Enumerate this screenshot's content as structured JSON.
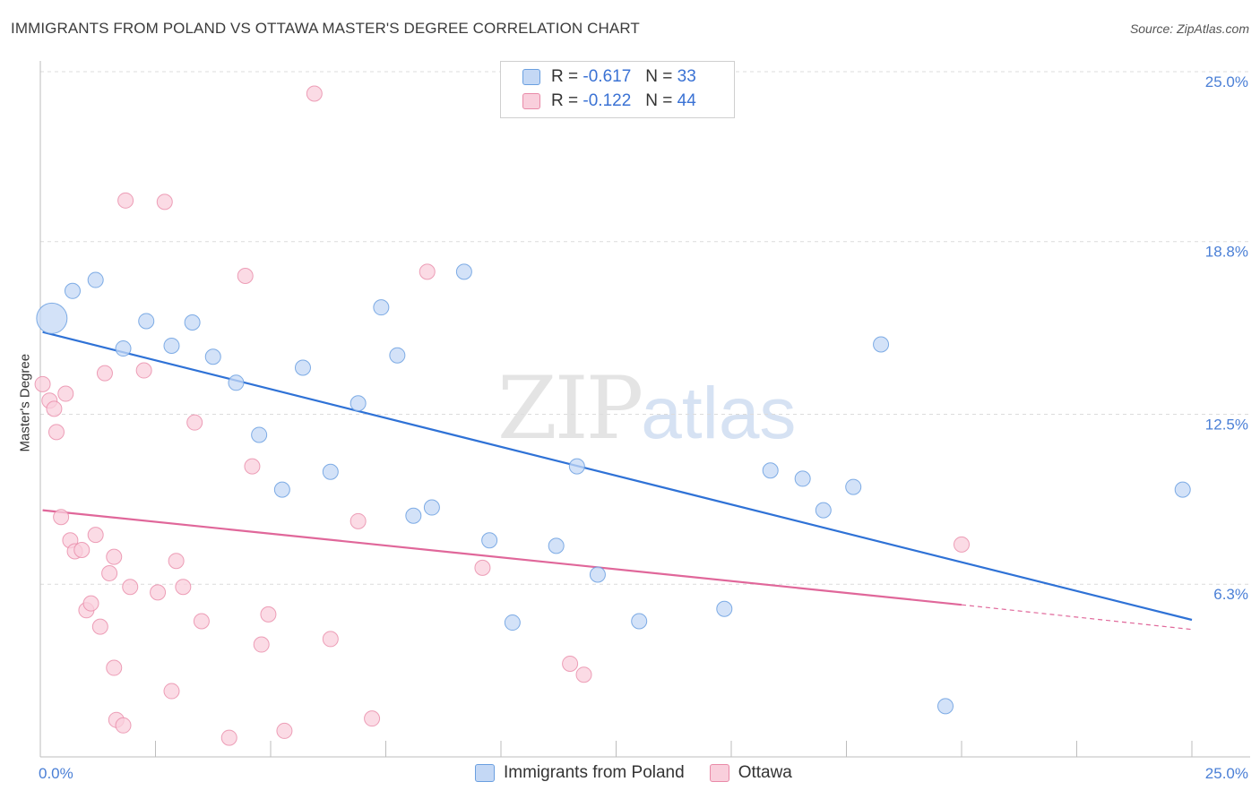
{
  "header": {
    "title": "IMMIGRANTS FROM POLAND VS OTTAWA MASTER'S DEGREE CORRELATION CHART",
    "source": "Source: ZipAtlas.com"
  },
  "watermark": {
    "zip": "ZIP",
    "atlas": "atlas"
  },
  "legend": {
    "rows": [
      {
        "r_label": "R =",
        "r_value": "-0.617",
        "n_label": "N =",
        "n_value": "33"
      },
      {
        "r_label": "R =",
        "r_value": "-0.122",
        "n_label": "N =",
        "n_value": "44"
      }
    ]
  },
  "bottom_legend": {
    "series1": "Immigrants from Poland",
    "series2": "Ottawa"
  },
  "chart_data": {
    "type": "scatter",
    "title": "IMMIGRANTS FROM POLAND VS OTTAWA MASTER'S DEGREE CORRELATION CHART",
    "xlabel": "",
    "ylabel": "Master's Degree",
    "xlim": [
      0,
      25
    ],
    "ylim": [
      0,
      25
    ],
    "x_tick_labels": [
      "0.0%",
      "25.0%"
    ],
    "y_ticks": [
      6.3,
      12.5,
      18.8,
      25.0
    ],
    "y_tick_labels": [
      "6.3%",
      "12.5%",
      "18.8%",
      "25.0%"
    ],
    "colors": {
      "series1": "#6a9fe0",
      "series1_fill": "#c4d8f5",
      "series2": "#e98aa8",
      "series2_fill": "#f9cfdc",
      "trend1": "#2f72d6",
      "trend2": "#e0679a"
    },
    "series": [
      {
        "name": "Immigrants from Poland",
        "r": -0.617,
        "n": 33,
        "trend": {
          "x0": 0.05,
          "y0": 15.5,
          "x1": 25.0,
          "y1": 5.0
        },
        "points": [
          {
            "x": 0.25,
            "y": 16.0,
            "big": true
          },
          {
            "x": 0.7,
            "y": 17.0
          },
          {
            "x": 1.2,
            "y": 17.4
          },
          {
            "x": 1.8,
            "y": 14.9
          },
          {
            "x": 2.3,
            "y": 15.9
          },
          {
            "x": 2.85,
            "y": 15.0
          },
          {
            "x": 3.3,
            "y": 15.85
          },
          {
            "x": 3.75,
            "y": 14.6
          },
          {
            "x": 4.25,
            "y": 13.65
          },
          {
            "x": 4.75,
            "y": 11.75
          },
          {
            "x": 5.25,
            "y": 9.75
          },
          {
            "x": 5.7,
            "y": 14.2
          },
          {
            "x": 6.3,
            "y": 10.4
          },
          {
            "x": 6.9,
            "y": 12.9
          },
          {
            "x": 7.4,
            "y": 16.4
          },
          {
            "x": 7.75,
            "y": 14.65
          },
          {
            "x": 8.1,
            "y": 8.8
          },
          {
            "x": 8.5,
            "y": 9.1
          },
          {
            "x": 9.2,
            "y": 17.7
          },
          {
            "x": 9.75,
            "y": 7.9
          },
          {
            "x": 10.25,
            "y": 4.9
          },
          {
            "x": 11.2,
            "y": 7.7
          },
          {
            "x": 11.65,
            "y": 10.6
          },
          {
            "x": 12.1,
            "y": 6.65
          },
          {
            "x": 13.0,
            "y": 4.95
          },
          {
            "x": 14.85,
            "y": 5.4
          },
          {
            "x": 15.85,
            "y": 10.45
          },
          {
            "x": 16.55,
            "y": 10.15
          },
          {
            "x": 17.0,
            "y": 9.0
          },
          {
            "x": 17.65,
            "y": 9.85
          },
          {
            "x": 18.25,
            "y": 15.05
          },
          {
            "x": 19.65,
            "y": 1.85
          },
          {
            "x": 24.8,
            "y": 9.75
          }
        ]
      },
      {
        "name": "Ottawa",
        "r": -0.122,
        "n": 44,
        "trend": {
          "x0": 0.05,
          "y0": 9.0,
          "x1": 20.0,
          "y1": 5.55,
          "dash_to_x": 25.0,
          "dash_to_y": 4.65
        },
        "points": [
          {
            "x": 0.05,
            "y": 13.6
          },
          {
            "x": 0.2,
            "y": 13.0
          },
          {
            "x": 0.3,
            "y": 12.7
          },
          {
            "x": 0.35,
            "y": 11.85
          },
          {
            "x": 0.45,
            "y": 8.75
          },
          {
            "x": 0.55,
            "y": 13.25
          },
          {
            "x": 0.65,
            "y": 7.9
          },
          {
            "x": 0.75,
            "y": 7.5
          },
          {
            "x": 0.9,
            "y": 7.55
          },
          {
            "x": 1.0,
            "y": 5.35
          },
          {
            "x": 1.1,
            "y": 5.6
          },
          {
            "x": 1.2,
            "y": 8.1
          },
          {
            "x": 1.3,
            "y": 4.75
          },
          {
            "x": 1.4,
            "y": 14.0
          },
          {
            "x": 1.5,
            "y": 6.7
          },
          {
            "x": 1.6,
            "y": 7.3
          },
          {
            "x": 1.6,
            "y": 3.25
          },
          {
            "x": 1.65,
            "y": 1.35
          },
          {
            "x": 1.8,
            "y": 1.15
          },
          {
            "x": 1.85,
            "y": 20.3
          },
          {
            "x": 1.95,
            "y": 6.2
          },
          {
            "x": 2.25,
            "y": 14.1
          },
          {
            "x": 2.55,
            "y": 6.0
          },
          {
            "x": 2.7,
            "y": 20.25
          },
          {
            "x": 2.85,
            "y": 2.4
          },
          {
            "x": 2.95,
            "y": 7.15
          },
          {
            "x": 3.1,
            "y": 6.2
          },
          {
            "x": 3.35,
            "y": 12.2
          },
          {
            "x": 3.5,
            "y": 4.95
          },
          {
            "x": 4.1,
            "y": 0.7
          },
          {
            "x": 4.45,
            "y": 17.55
          },
          {
            "x": 4.6,
            "y": 10.6
          },
          {
            "x": 4.8,
            "y": 4.1
          },
          {
            "x": 4.95,
            "y": 5.2
          },
          {
            "x": 5.3,
            "y": 0.95
          },
          {
            "x": 5.95,
            "y": 24.2
          },
          {
            "x": 6.3,
            "y": 4.3
          },
          {
            "x": 6.9,
            "y": 8.6
          },
          {
            "x": 7.2,
            "y": 1.4
          },
          {
            "x": 8.4,
            "y": 17.7
          },
          {
            "x": 9.6,
            "y": 6.9
          },
          {
            "x": 11.5,
            "y": 3.4
          },
          {
            "x": 11.8,
            "y": 3.0
          },
          {
            "x": 20.0,
            "y": 7.75
          }
        ]
      }
    ]
  }
}
